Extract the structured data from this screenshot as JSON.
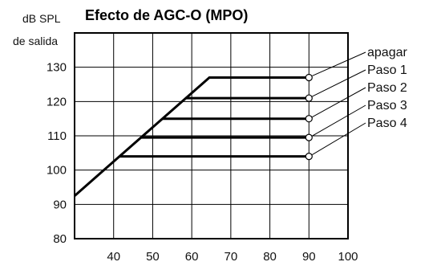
{
  "chart_data": {
    "type": "line",
    "title": "Efecto de AGC-O (MPO)",
    "ylabel_lines": [
      "dB SPL",
      "de salida"
    ],
    "xlabel": "",
    "xlim": [
      30,
      100
    ],
    "ylim": [
      80,
      140
    ],
    "xticks": [
      40,
      50,
      60,
      70,
      80,
      90,
      100
    ],
    "yticks": [
      80,
      90,
      100,
      110,
      120,
      130
    ],
    "grid": true,
    "legend": "right",
    "series": [
      {
        "name": "apagar",
        "points": [
          [
            30,
            92.5
          ],
          [
            64.5,
            127
          ],
          [
            90,
            127
          ]
        ]
      },
      {
        "name": "Paso 1",
        "points": [
          [
            58.5,
            121
          ],
          [
            90,
            121
          ]
        ]
      },
      {
        "name": "Paso 2",
        "points": [
          [
            52.5,
            115
          ],
          [
            90,
            115
          ]
        ]
      },
      {
        "name": "Paso 3",
        "points": [
          [
            47,
            109.5
          ],
          [
            90,
            109.5
          ]
        ]
      },
      {
        "name": "Paso 4",
        "points": [
          [
            41.5,
            104
          ],
          [
            90,
            104
          ]
        ]
      }
    ]
  }
}
